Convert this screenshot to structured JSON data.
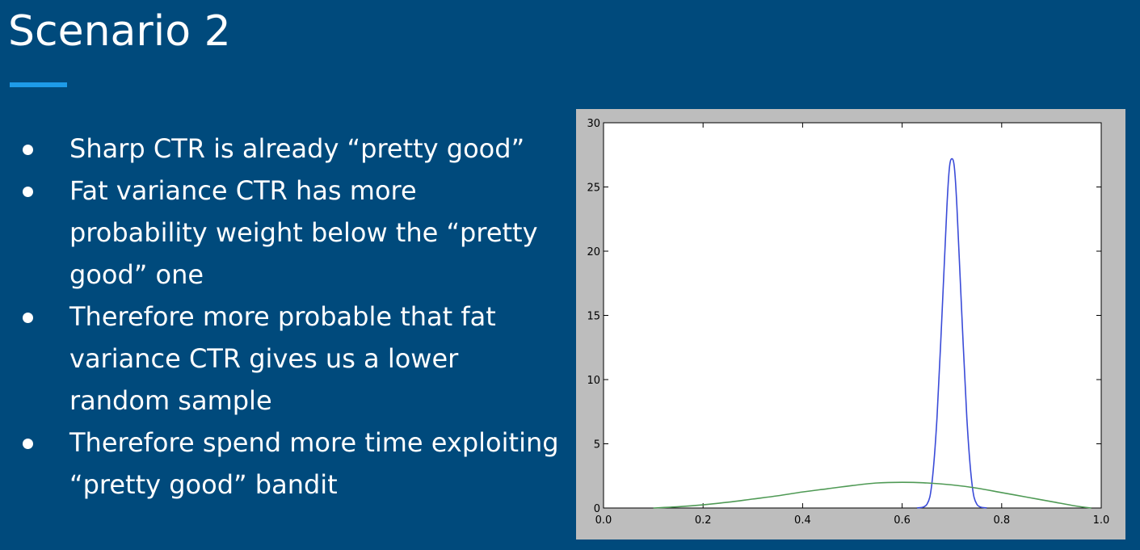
{
  "slide": {
    "title": "Scenario 2",
    "accent_color": "#1e9be8",
    "background_color": "#004a7c"
  },
  "bullets": [
    "Sharp CTR is already “pretty good”",
    "Fat variance CTR has more probability weight below the “pretty good” one",
    "Therefore more probable that fat variance CTR gives us a lower random sample",
    "Therefore spend more time exploiting “pretty good” bandit"
  ],
  "chart_data": {
    "type": "line",
    "title": "",
    "xlabel": "",
    "ylabel": "",
    "xlim": [
      0.0,
      1.0
    ],
    "ylim": [
      0,
      30
    ],
    "xticks": [
      0.0,
      0.2,
      0.4,
      0.6,
      0.8,
      1.0
    ],
    "xtick_labels": [
      "0.0",
      "0.2",
      "0.4",
      "0.6",
      "0.8",
      "1.0"
    ],
    "yticks": [
      0,
      5,
      10,
      15,
      20,
      25,
      30
    ],
    "ytick_labels": [
      "0",
      "5",
      "10",
      "15",
      "20",
      "25",
      "30"
    ],
    "grid": false,
    "series": [
      {
        "color": "#3a4bd8",
        "x": [
          0.63,
          0.65,
          0.66,
          0.67,
          0.68,
          0.69,
          0.695,
          0.7,
          0.705,
          0.71,
          0.72,
          0.73,
          0.74,
          0.75,
          0.77
        ],
        "y": [
          0.0,
          0.3,
          2.0,
          7.0,
          15.0,
          23.5,
          26.5,
          27.2,
          26.5,
          23.5,
          15.0,
          7.0,
          2.0,
          0.3,
          0.0
        ]
      },
      {
        "color": "#4f9a55",
        "x": [
          0.1,
          0.15,
          0.2,
          0.25,
          0.3,
          0.35,
          0.4,
          0.45,
          0.5,
          0.55,
          0.6,
          0.65,
          0.7,
          0.75,
          0.8,
          0.85,
          0.9,
          0.95,
          0.98
        ],
        "y": [
          0.0,
          0.1,
          0.25,
          0.45,
          0.7,
          0.95,
          1.25,
          1.5,
          1.75,
          1.95,
          2.0,
          1.95,
          1.8,
          1.55,
          1.2,
          0.85,
          0.5,
          0.15,
          0.0
        ]
      }
    ]
  }
}
